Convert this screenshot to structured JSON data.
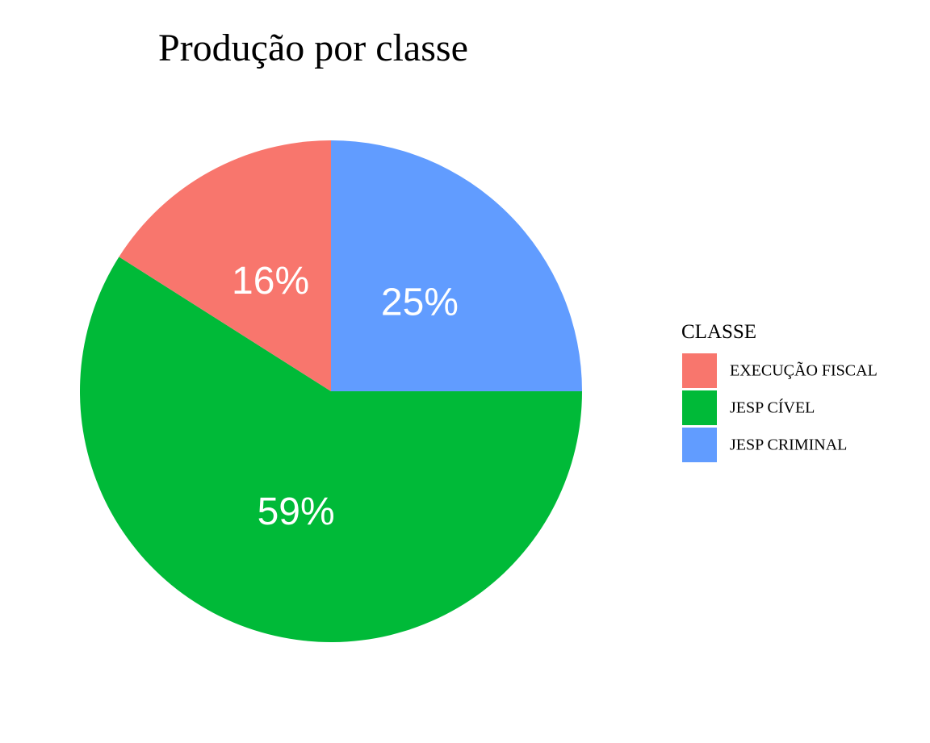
{
  "chart_data": {
    "type": "pie",
    "title": "Produção por classe",
    "legend_title": "CLASSE",
    "legend_position": "right",
    "categories": [
      "EXECUÇÃO FISCAL",
      "JESP CÍVEL",
      "JESP CRIMINAL"
    ],
    "values": [
      16,
      59,
      25
    ],
    "labels": [
      "16%",
      "59%",
      "25%"
    ],
    "colors": [
      "#F8766D",
      "#00BA38",
      "#619CFF"
    ]
  }
}
